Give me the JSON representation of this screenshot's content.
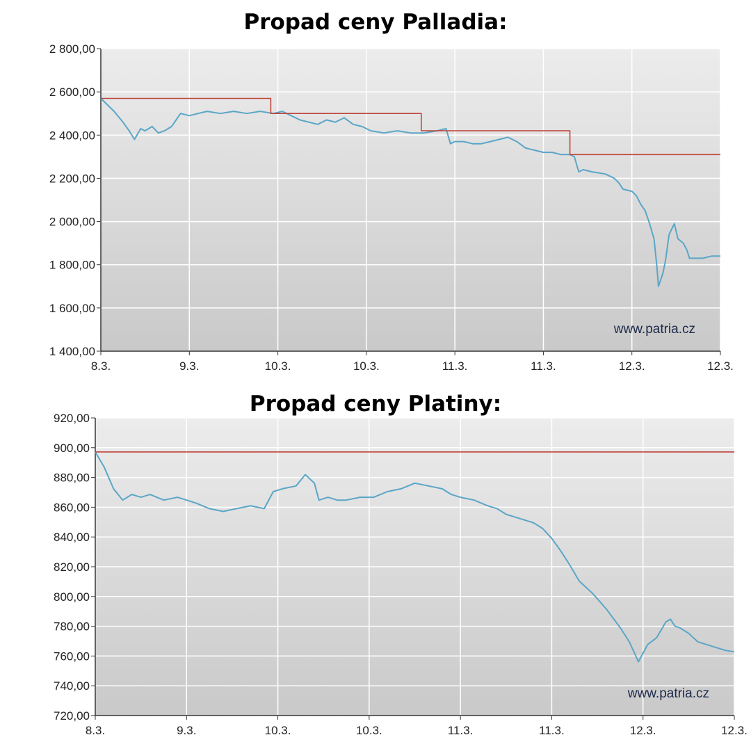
{
  "colors": {
    "price_line": "#5aa6c7",
    "reference_line": "#c0443c",
    "grid": "#ffffff",
    "plot_bg_top": "#ececec",
    "plot_bg_bottom": "#c9c9c9",
    "axis": "#333333"
  },
  "chart_data": [
    {
      "type": "line",
      "title": "Propad ceny Palladia:",
      "watermark": "www.patria.cz",
      "xlabel": "",
      "ylabel": "",
      "x_tick_labels": [
        "8.3.",
        "9.3.",
        "10.3.",
        "10.3.",
        "11.3.",
        "11.3.",
        "12.3.",
        "12.3."
      ],
      "y_tick_labels": [
        "2 800,00",
        "2 600,00",
        "2 400,00",
        "2 200,00",
        "2 000,00",
        "1 800,00",
        "1 600,00",
        "1 400,00"
      ],
      "ylim": [
        1400,
        2800
      ],
      "xlim": [
        0,
        7
      ],
      "grid": true,
      "series": [
        {
          "role": "price",
          "x": [
            0,
            0.15,
            0.25,
            0.32,
            0.38,
            0.45,
            0.5,
            0.58,
            0.65,
            0.72,
            0.8,
            0.9,
            1.0,
            1.1,
            1.2,
            1.35,
            1.5,
            1.65,
            1.8,
            1.95,
            2.05,
            2.15,
            2.25,
            2.35,
            2.45,
            2.55,
            2.65,
            2.75,
            2.85,
            2.95,
            3.05,
            3.2,
            3.35,
            3.5,
            3.65,
            3.8,
            3.9,
            3.95,
            4.0,
            4.1,
            4.2,
            4.3,
            4.4,
            4.5,
            4.6,
            4.7,
            4.8,
            4.9,
            5.0,
            5.1,
            5.2,
            5.3,
            5.35,
            5.4,
            5.45,
            5.55,
            5.7,
            5.8,
            5.85,
            5.9,
            6.0,
            6.05,
            6.1,
            6.15,
            6.2,
            6.25,
            6.28,
            6.3,
            6.35,
            6.38,
            6.42,
            6.48,
            6.52,
            6.58,
            6.62,
            6.65,
            6.72,
            6.8,
            6.9,
            7.0
          ],
          "y": [
            2570,
            2510,
            2460,
            2420,
            2380,
            2430,
            2420,
            2440,
            2410,
            2420,
            2440,
            2500,
            2490,
            2500,
            2510,
            2500,
            2510,
            2500,
            2510,
            2500,
            2510,
            2490,
            2470,
            2460,
            2450,
            2470,
            2460,
            2480,
            2450,
            2440,
            2420,
            2410,
            2420,
            2410,
            2410,
            2420,
            2430,
            2360,
            2370,
            2370,
            2360,
            2360,
            2370,
            2380,
            2390,
            2370,
            2340,
            2330,
            2320,
            2320,
            2310,
            2310,
            2300,
            2230,
            2240,
            2230,
            2220,
            2200,
            2180,
            2150,
            2140,
            2120,
            2080,
            2050,
            1990,
            1920,
            1800,
            1700,
            1760,
            1820,
            1940,
            1990,
            1920,
            1900,
            1870,
            1830,
            1830,
            1830,
            1840,
            1840
          ]
        },
        {
          "role": "reference",
          "x": [
            0,
            1.92,
            1.92,
            3.62,
            3.62,
            5.3,
            5.3,
            7.0
          ],
          "y": [
            2570,
            2570,
            2500,
            2500,
            2420,
            2420,
            2310,
            2310
          ]
        }
      ]
    },
    {
      "type": "line",
      "title": "Propad ceny Platiny:",
      "watermark": "www.patria.cz",
      "xlabel": "",
      "ylabel": "",
      "x_tick_labels": [
        "8.3.",
        "9.3.",
        "10.3.",
        "10.3.",
        "11.3.",
        "11.3.",
        "12.3.",
        "12.3."
      ],
      "y_tick_labels": [
        "920,00",
        "900,00",
        "880,00",
        "860,00",
        "840,00",
        "820,00",
        "800,00",
        "780,00",
        "760,00",
        "740,00",
        "720,00"
      ],
      "ylim": [
        720,
        930
      ],
      "xlim": [
        0,
        7
      ],
      "grid": true,
      "series": [
        {
          "role": "price",
          "x": [
            0,
            0.1,
            0.2,
            0.3,
            0.4,
            0.5,
            0.6,
            0.75,
            0.9,
            1.0,
            1.1,
            1.25,
            1.4,
            1.55,
            1.7,
            1.85,
            1.95,
            2.05,
            2.2,
            2.3,
            2.4,
            2.45,
            2.55,
            2.65,
            2.75,
            2.9,
            3.05,
            3.2,
            3.35,
            3.5,
            3.65,
            3.8,
            3.9,
            4.0,
            4.15,
            4.3,
            4.4,
            4.5,
            4.6,
            4.7,
            4.8,
            4.9,
            5.0,
            5.1,
            5.2,
            5.3,
            5.45,
            5.6,
            5.75,
            5.85,
            5.95,
            6.05,
            6.15,
            6.25,
            6.3,
            6.35,
            6.4,
            6.5,
            6.6,
            6.7,
            6.8,
            6.9,
            7.0
          ],
          "y": [
            906,
            895,
            880,
            872,
            876,
            874,
            876,
            872,
            874,
            872,
            870,
            866,
            864,
            866,
            868,
            866,
            878,
            880,
            882,
            890,
            884,
            872,
            874,
            872,
            872,
            874,
            874,
            878,
            880,
            884,
            882,
            880,
            876,
            874,
            872,
            868,
            866,
            862,
            860,
            858,
            856,
            852,
            845,
            836,
            826,
            815,
            806,
            795,
            782,
            772,
            758,
            770,
            775,
            786,
            788,
            783,
            782,
            778,
            772,
            770,
            768,
            766,
            765
          ]
        },
        {
          "role": "reference",
          "x": [
            0,
            7.0
          ],
          "y": [
            906,
            906
          ]
        }
      ]
    }
  ]
}
